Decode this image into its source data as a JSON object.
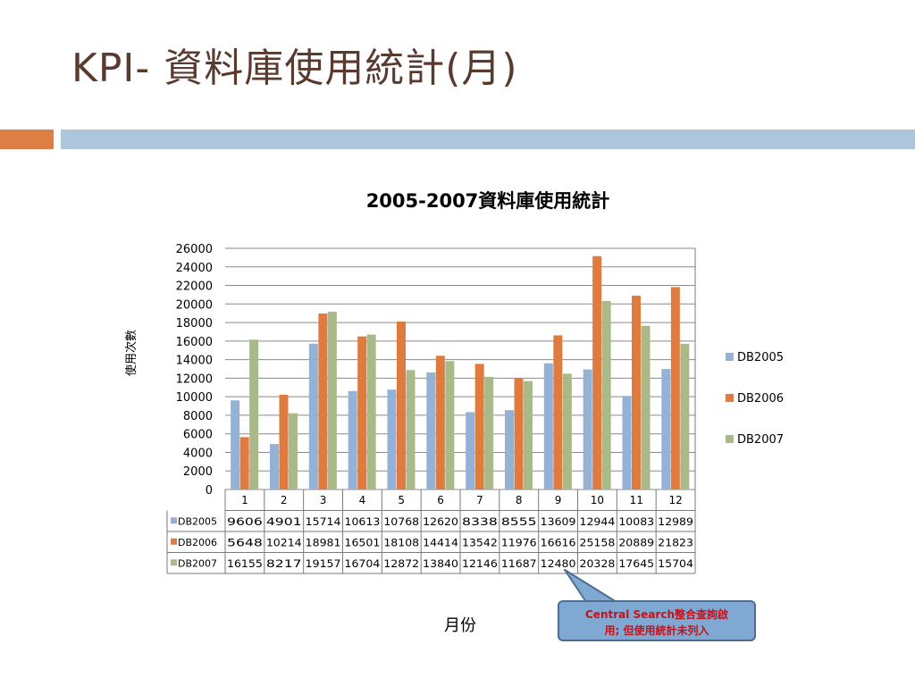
{
  "slide": {
    "title": "KPI- 資料庫使用統計(月)"
  },
  "callout": {
    "line1": "Central Search整合查詢啟",
    "line2": "用; 但使用統計未列入"
  },
  "colors": {
    "title": "#5a3a2e",
    "accent_orange": "#dd7f45",
    "accent_blue": "#aec6dc",
    "callout_fill": "#7fa8d3",
    "callout_text": "#c0141d"
  },
  "chart_data": {
    "type": "bar",
    "title": "2005-2007資料庫使用統計",
    "xlabel": "月份",
    "ylabel": "使用次數",
    "categories": [
      "1",
      "2",
      "3",
      "4",
      "5",
      "6",
      "7",
      "8",
      "9",
      "10",
      "11",
      "12"
    ],
    "ylim": [
      0,
      26000
    ],
    "yticks": [
      "0",
      "2000",
      "4000",
      "6000",
      "8000",
      "10000",
      "12000",
      "14000",
      "16000",
      "18000",
      "20000",
      "22000",
      "24000",
      "26000"
    ],
    "grid": true,
    "legend_position": "right",
    "data_table": true,
    "series": [
      {
        "name": "DB2005",
        "color": "#93b2d6",
        "values": [
          9606,
          4901,
          15714,
          10613,
          10768,
          12620,
          8338,
          8555,
          13609,
          12944,
          10083,
          12989
        ]
      },
      {
        "name": "DB2006",
        "color": "#e07b3f",
        "values": [
          5648,
          10214,
          18981,
          16501,
          18108,
          14414,
          13542,
          11976,
          16616,
          25158,
          20889,
          21823
        ]
      },
      {
        "name": "DB2007",
        "color": "#a9b987",
        "values": [
          16155,
          8217,
          19157,
          16704,
          12872,
          13840,
          12146,
          11687,
          12480,
          20328,
          17645,
          15704
        ]
      }
    ]
  }
}
